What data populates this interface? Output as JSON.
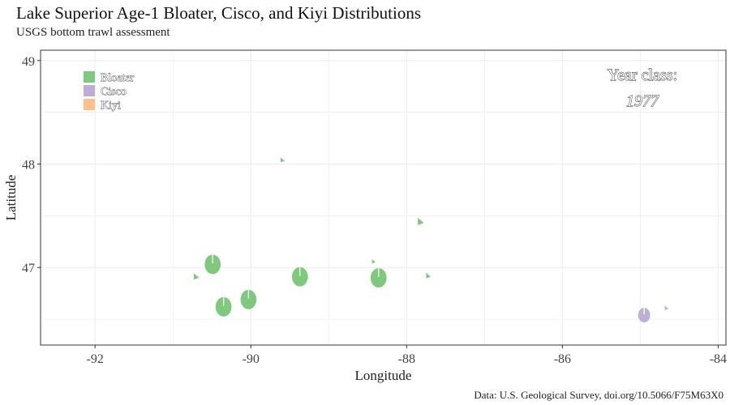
{
  "title": "Lake Superior Age-1 Bloater, Cisco, and Kiyi Distributions",
  "subtitle": "USGS bottom trawl assessment",
  "caption": "Data: U.S. Geological Survey, doi.org/10.5066/F75M63X0",
  "annotation": {
    "heading": "Year class:",
    "year": "1977"
  },
  "colors": {
    "bloater": "#7fc97f",
    "cisco": "#beaed4",
    "kiyi": "#fdc086"
  },
  "chart_data": {
    "type": "scatter",
    "xlabel": "Longitude",
    "ylabel": "Latitude",
    "xlim": [
      -92.7,
      -83.9
    ],
    "ylim": [
      46.25,
      49.1
    ],
    "xticks": [
      -92,
      -90,
      -88,
      -86,
      -84
    ],
    "yticks": [
      47,
      48,
      49
    ],
    "grid": true,
    "legend_position": "top-left",
    "legend": [
      {
        "name": "Bloater",
        "color": "#7fc97f"
      },
      {
        "name": "Cisco",
        "color": "#beaed4"
      },
      {
        "name": "Kiyi",
        "color": "#fdc086"
      }
    ],
    "series": [
      {
        "name": "Bloater",
        "color": "#7fc97f",
        "points": [
          {
            "x": -90.49,
            "y": 47.03,
            "size": 1.0
          },
          {
            "x": -90.35,
            "y": 46.62,
            "size": 1.0
          },
          {
            "x": -90.03,
            "y": 46.69,
            "size": 1.0
          },
          {
            "x": -89.37,
            "y": 46.91,
            "size": 1.0
          },
          {
            "x": -88.36,
            "y": 46.9,
            "size": 1.0
          },
          {
            "x": -89.6,
            "y": 48.03,
            "size": 0.3
          },
          {
            "x": -90.71,
            "y": 46.9,
            "size": 0.4
          },
          {
            "x": -87.83,
            "y": 47.43,
            "size": 0.45
          },
          {
            "x": -87.73,
            "y": 46.91,
            "size": 0.35
          },
          {
            "x": -88.43,
            "y": 47.05,
            "size": 0.2
          }
        ]
      },
      {
        "name": "Cisco",
        "color": "#beaed4",
        "points": [
          {
            "x": -84.95,
            "y": 46.54,
            "size": 0.75
          },
          {
            "x": -84.67,
            "y": 46.6,
            "size": 0.2
          }
        ]
      },
      {
        "name": "Kiyi",
        "color": "#fdc086",
        "points": []
      }
    ]
  }
}
